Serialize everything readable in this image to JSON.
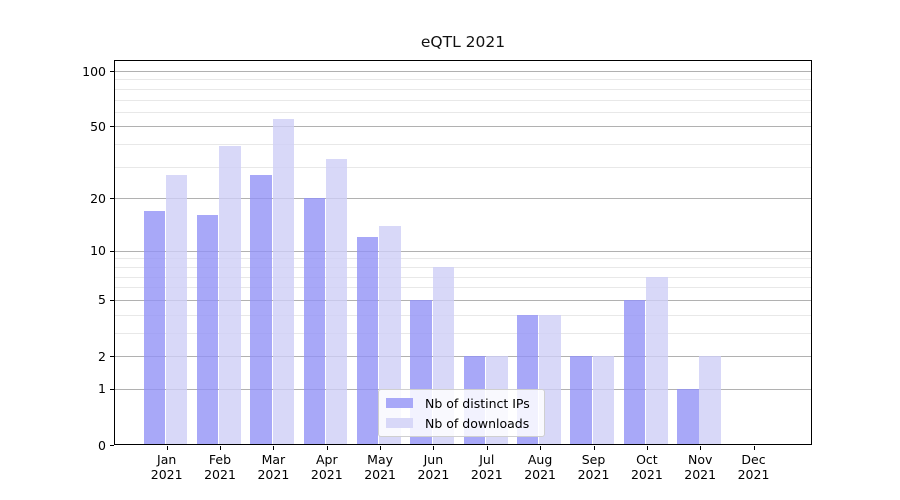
{
  "title": "eQTL 2021",
  "chart_data": {
    "type": "bar",
    "title": "eQTL 2021",
    "categories": [
      "Jan",
      "Feb",
      "Mar",
      "Apr",
      "May",
      "Jun",
      "Jul",
      "Aug",
      "Sep",
      "Oct",
      "Nov",
      "Dec"
    ],
    "x_tick_line2": "2021",
    "series": [
      {
        "name": "Nb of distinct IPs",
        "color": "#a8a8f8",
        "values": [
          17,
          16,
          27,
          20,
          12,
          5,
          2,
          4,
          2,
          5,
          1,
          0
        ]
      },
      {
        "name": "Nb of downloads",
        "color": "#d8d8f8",
        "values": [
          27,
          39,
          55,
          33,
          14,
          8,
          2,
          4,
          2,
          7,
          2,
          0
        ]
      }
    ],
    "yscale": "log1p",
    "yticks": [
      0,
      1,
      2,
      5,
      10,
      20,
      50,
      100
    ],
    "minor_yticks": [
      3,
      4,
      6,
      7,
      8,
      9,
      30,
      40,
      60,
      70,
      80,
      90
    ],
    "ylim": [
      0,
      115
    ],
    "xlabel": "",
    "ylabel": "",
    "grid": true,
    "legend_position": "lower center",
    "colors": {
      "major_grid": "#b1b1b1",
      "minor_grid": "#e8e8e8",
      "spine": "#000000",
      "text": "#000000",
      "background": "#ffffff"
    }
  }
}
